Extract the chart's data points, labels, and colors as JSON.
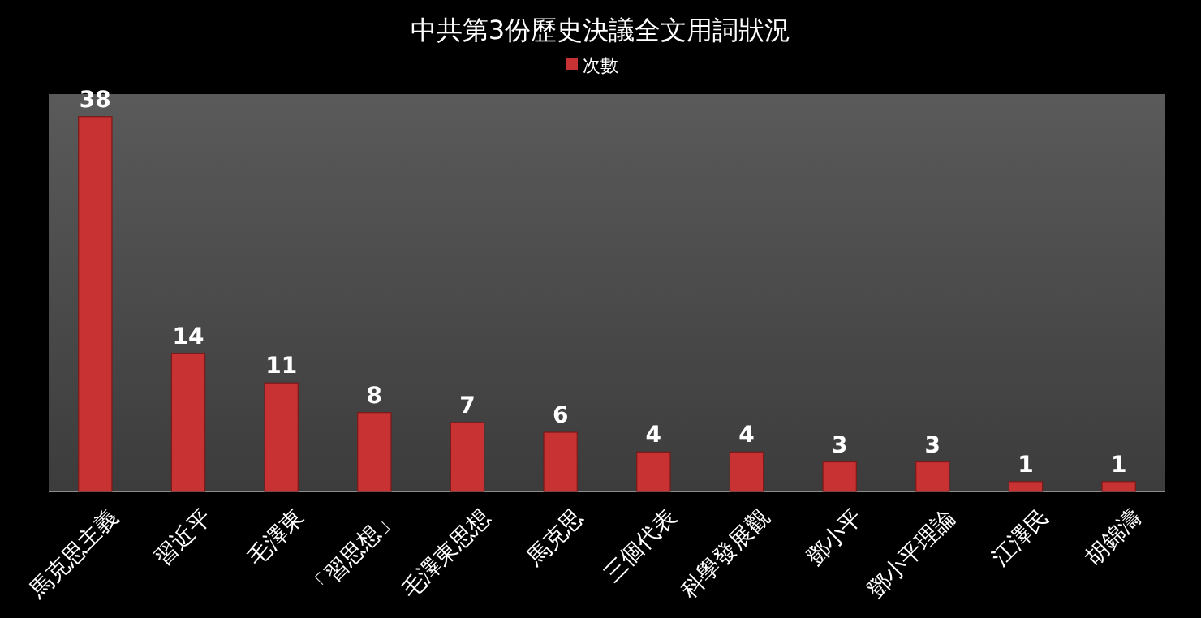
{
  "chart_data": {
    "type": "bar",
    "title": "中共第3份歷史決議全文用詞狀況",
    "categories": [
      "馬克思主義",
      "習近平",
      "毛澤東",
      "「習思想」",
      "毛澤東思想",
      "馬克思",
      "三個代表",
      "科學發展觀",
      "鄧小平",
      "鄧小平理論",
      "江澤民",
      "胡錦濤"
    ],
    "series": [
      {
        "name": "次數",
        "color": "#c83232",
        "values": [
          38,
          14,
          11,
          8,
          7,
          6,
          4,
          4,
          3,
          3,
          1,
          1
        ]
      }
    ],
    "data_labels": true,
    "legend": "top"
  }
}
